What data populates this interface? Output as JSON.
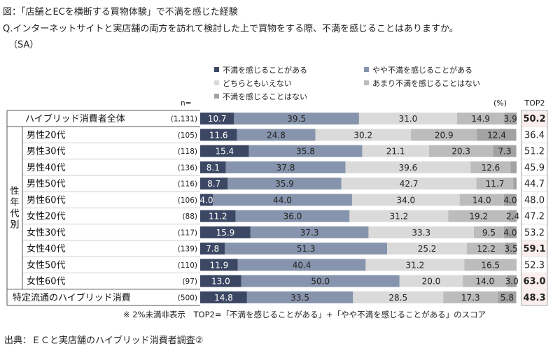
{
  "figure": {
    "title": "図：「店舗とECを横断する買物体験」で不満を感じた経験",
    "question": "Q.インターネットサイトと実店舗の両方を訪れて検討した上で買物をする際、不満を感じることはありますか。",
    "sa": "（SA）",
    "note": "※ 2%未満非表示　TOP2=「不満を感じることがある」+「やや不満を感じることがある」のスコア",
    "source": "出典：ＥＣと実店舗のハイブリッド消費者調査②"
  },
  "chart_data": {
    "type": "bar",
    "orientation": "horizontal",
    "stacked": true,
    "percent_label": "(%)",
    "n_header": "n=",
    "top2_header": "TOP2",
    "group_label": "性年代別",
    "xlim": [
      0,
      100
    ],
    "hidden_below": 2,
    "categories": [
      "ハイブリッド消費者全体",
      "男性20代",
      "男性30代",
      "男性40代",
      "男性50代",
      "男性60代",
      "女性20代",
      "女性30代",
      "女性40代",
      "女性50代",
      "女性60代",
      "特定流通のハイブリッド消費"
    ],
    "n": [
      "(1,131)",
      "(105)",
      "(118)",
      "(136)",
      "(116)",
      "(106)",
      "(88)",
      "(117)",
      "(139)",
      "(110)",
      "(97)",
      "(500)"
    ],
    "series": [
      {
        "name": "不満を感じることがある",
        "color": "#3b4763",
        "label_color": "#ffffff",
        "values": [
          10.7,
          11.6,
          15.4,
          8.1,
          8.7,
          4.0,
          11.2,
          15.9,
          7.8,
          11.9,
          13.0,
          14.8
        ]
      },
      {
        "name": "やや不満を感じることがある",
        "color": "#8794ad",
        "label_color": "#222222",
        "values": [
          39.5,
          24.8,
          35.8,
          37.8,
          35.9,
          44.0,
          36.0,
          37.3,
          51.3,
          40.4,
          50.0,
          33.5
        ]
      },
      {
        "name": "どちらともいえない",
        "color": "#dadada",
        "label_color": "#222222",
        "values": [
          31.0,
          30.2,
          21.1,
          39.6,
          42.7,
          34.0,
          31.2,
          33.3,
          25.2,
          31.2,
          20.0,
          28.5
        ]
      },
      {
        "name": "あまり不満を感じることはない",
        "color": "#bcbcbc",
        "label_color": "#222222",
        "values": [
          14.9,
          20.9,
          20.3,
          12.6,
          11.7,
          14.0,
          19.2,
          9.5,
          12.2,
          16.5,
          14.0,
          17.3
        ]
      },
      {
        "name": "不満を感じることはない",
        "color": "#a2a2a2",
        "label_color": "#222222",
        "values": [
          3.9,
          12.4,
          7.3,
          1.9,
          1.0,
          4.0,
          2.4,
          4.0,
          3.5,
          0.0,
          3.0,
          5.8
        ]
      }
    ],
    "top2": [
      "50.2",
      "36.4",
      "51.2",
      "45.9",
      "44.7",
      "48.0",
      "47.2",
      "53.2",
      "59.1",
      "52.3",
      "63.0",
      "48.3"
    ],
    "top2_highlight": [
      true,
      false,
      false,
      false,
      false,
      false,
      false,
      false,
      true,
      false,
      true,
      true
    ],
    "highlight_color": "#e8231e",
    "highlight_bg": "#fdeeee"
  }
}
